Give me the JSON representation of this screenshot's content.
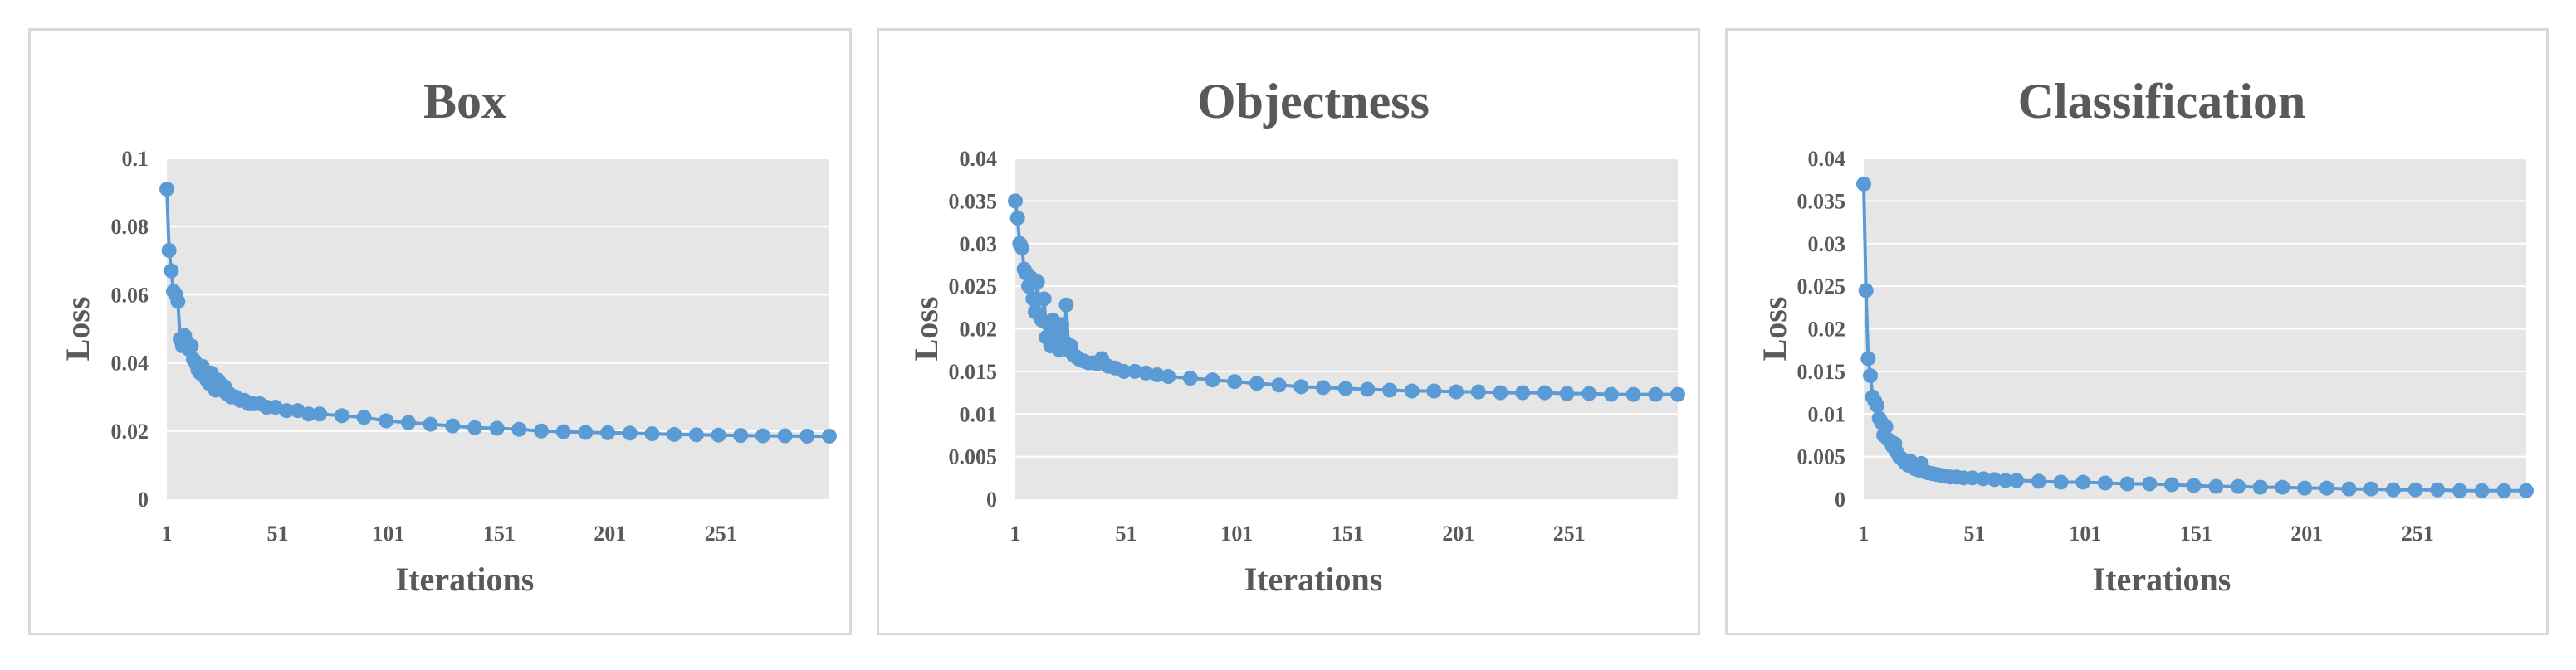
{
  "colors": {
    "series": "#5b9bd5",
    "plot_bg": "#e6e6e6",
    "text": "#595959"
  },
  "chart_data": [
    {
      "type": "line",
      "title": "Box",
      "xlabel": "Iterations",
      "ylabel": "Loss",
      "xticks": [
        "1",
        "51",
        "101",
        "151",
        "201",
        "251"
      ],
      "xlim": [
        1,
        300
      ],
      "ylim": [
        0,
        0.1
      ],
      "yticks": [
        "0",
        "0.02",
        "0.04",
        "0.06",
        "0.08",
        "0.1"
      ],
      "ytick_values": [
        0,
        0.02,
        0.04,
        0.06,
        0.08,
        0.1
      ],
      "grid": true,
      "legend": "none",
      "series": [
        {
          "x": [
            1,
            2,
            3,
            4,
            5,
            6,
            7,
            8,
            9,
            10,
            11,
            12,
            13,
            14,
            15,
            16,
            17,
            18,
            19,
            20,
            21,
            22,
            23,
            24,
            25,
            26,
            27,
            28,
            29,
            30,
            32,
            34,
            36,
            38,
            40,
            43,
            46,
            50,
            55,
            60,
            65,
            70,
            80,
            90,
            100,
            110,
            120,
            130,
            140,
            150,
            160,
            170,
            180,
            190,
            200,
            210,
            220,
            230,
            240,
            250,
            260,
            270,
            280,
            290,
            300
          ],
          "y": [
            0.091,
            0.073,
            0.067,
            0.061,
            0.06,
            0.058,
            0.047,
            0.045,
            0.048,
            0.046,
            0.044,
            0.045,
            0.041,
            0.04,
            0.038,
            0.037,
            0.039,
            0.036,
            0.035,
            0.034,
            0.037,
            0.033,
            0.032,
            0.035,
            0.034,
            0.032,
            0.033,
            0.031,
            0.031,
            0.03,
            0.03,
            0.029,
            0.029,
            0.028,
            0.028,
            0.028,
            0.027,
            0.027,
            0.026,
            0.026,
            0.025,
            0.025,
            0.0245,
            0.024,
            0.023,
            0.0225,
            0.022,
            0.0215,
            0.021,
            0.0208,
            0.0205,
            0.02,
            0.0198,
            0.0196,
            0.0195,
            0.0194,
            0.0192,
            0.019,
            0.0189,
            0.0188,
            0.0187,
            0.0186,
            0.0186,
            0.0185,
            0.0185
          ]
        }
      ]
    },
    {
      "type": "line",
      "title": "Objectness",
      "xlabel": "Iterations",
      "ylabel": "Loss",
      "xticks": [
        "1",
        "51",
        "101",
        "151",
        "201",
        "251"
      ],
      "xlim": [
        1,
        300
      ],
      "ylim": [
        0,
        0.04
      ],
      "yticks": [
        "0",
        "0.005",
        "0.01",
        "0.015",
        "0.02",
        "0.025",
        "0.03",
        "0.035",
        "0.04"
      ],
      "ytick_values": [
        0,
        0.005,
        0.01,
        0.015,
        0.02,
        0.025,
        0.03,
        0.035,
        0.04
      ],
      "grid": true,
      "legend": "none",
      "series": [
        {
          "x": [
            1,
            2,
            3,
            4,
            5,
            6,
            7,
            8,
            9,
            10,
            11,
            12,
            13,
            14,
            15,
            16,
            17,
            18,
            19,
            20,
            21,
            22,
            23,
            24,
            25,
            26,
            27,
            28,
            29,
            30,
            32,
            34,
            36,
            38,
            40,
            43,
            46,
            50,
            55,
            60,
            65,
            70,
            80,
            90,
            100,
            110,
            120,
            130,
            140,
            150,
            160,
            170,
            180,
            190,
            200,
            210,
            220,
            230,
            240,
            250,
            260,
            270,
            280,
            290,
            300
          ],
          "y": [
            0.035,
            0.033,
            0.03,
            0.0295,
            0.027,
            0.0265,
            0.025,
            0.026,
            0.0235,
            0.022,
            0.0255,
            0.0215,
            0.021,
            0.0235,
            0.019,
            0.0205,
            0.018,
            0.021,
            0.0195,
            0.0185,
            0.0175,
            0.0205,
            0.0185,
            0.0228,
            0.0175,
            0.018,
            0.017,
            0.0168,
            0.0166,
            0.0164,
            0.0162,
            0.016,
            0.016,
            0.0159,
            0.0165,
            0.0156,
            0.0154,
            0.015,
            0.015,
            0.0148,
            0.0146,
            0.0144,
            0.0142,
            0.014,
            0.0138,
            0.0136,
            0.0134,
            0.0132,
            0.0131,
            0.013,
            0.0129,
            0.0128,
            0.0127,
            0.0127,
            0.0126,
            0.0126,
            0.0125,
            0.0125,
            0.0125,
            0.0124,
            0.0124,
            0.0123,
            0.0123,
            0.0123,
            0.0123
          ]
        }
      ]
    },
    {
      "type": "line",
      "title": "Classification",
      "xlabel": "Iterations",
      "ylabel": "Loss",
      "xticks": [
        "1",
        "51",
        "101",
        "151",
        "201",
        "251"
      ],
      "xlim": [
        1,
        300
      ],
      "ylim": [
        0,
        0.04
      ],
      "yticks": [
        "0",
        "0.005",
        "0.01",
        "0.015",
        "0.02",
        "0.025",
        "0.03",
        "0.035",
        "0.04"
      ],
      "ytick_values": [
        0,
        0.005,
        0.01,
        0.015,
        0.02,
        0.025,
        0.03,
        0.035,
        0.04
      ],
      "grid": true,
      "legend": "none",
      "series": [
        {
          "x": [
            1,
            2,
            3,
            4,
            5,
            6,
            7,
            8,
            9,
            10,
            11,
            12,
            13,
            14,
            15,
            16,
            17,
            18,
            19,
            20,
            21,
            22,
            23,
            24,
            25,
            26,
            27,
            28,
            29,
            30,
            32,
            34,
            36,
            38,
            40,
            43,
            46,
            50,
            55,
            60,
            65,
            70,
            80,
            90,
            100,
            110,
            120,
            130,
            140,
            150,
            160,
            170,
            180,
            190,
            200,
            210,
            220,
            230,
            240,
            250,
            260,
            270,
            280,
            290,
            300
          ],
          "y": [
            0.037,
            0.0245,
            0.0165,
            0.0145,
            0.012,
            0.0115,
            0.011,
            0.0095,
            0.009,
            0.0075,
            0.0085,
            0.007,
            0.0068,
            0.0062,
            0.0065,
            0.0055,
            0.005,
            0.0048,
            0.0045,
            0.0042,
            0.004,
            0.0045,
            0.0038,
            0.0036,
            0.0035,
            0.0034,
            0.0042,
            0.0033,
            0.0032,
            0.0031,
            0.003,
            0.0029,
            0.0028,
            0.0027,
            0.0026,
            0.0026,
            0.0025,
            0.0025,
            0.0024,
            0.0023,
            0.0022,
            0.0022,
            0.0021,
            0.002,
            0.002,
            0.0019,
            0.0018,
            0.0018,
            0.0017,
            0.0016,
            0.0015,
            0.0015,
            0.0014,
            0.0014,
            0.0013,
            0.0013,
            0.0012,
            0.0012,
            0.0011,
            0.0011,
            0.0011,
            0.001,
            0.001,
            0.001,
            0.001
          ]
        }
      ]
    }
  ]
}
